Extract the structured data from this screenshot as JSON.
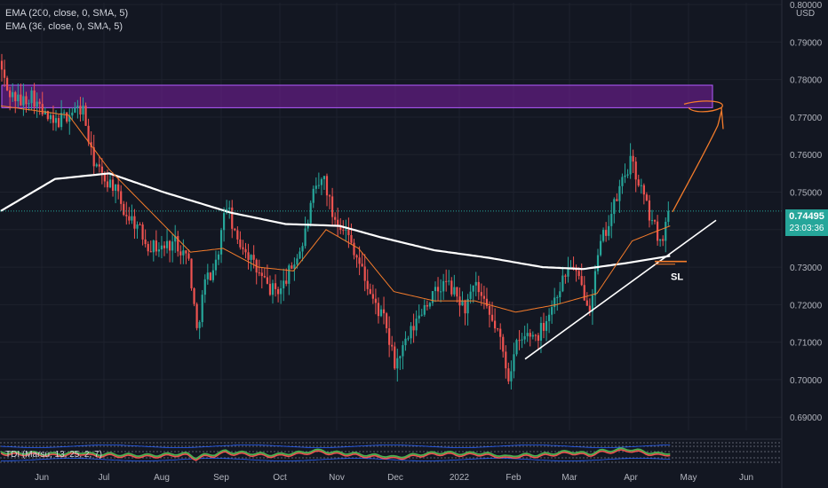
{
  "legend": {
    "ema200": "EMA (200, close, 0, SMA, 5)",
    "ema36": "EMA (36, close, 0, SMA, 5)"
  },
  "indicator": {
    "label": "TDI (Marsu, 13, 25, 2, 7)"
  },
  "price_axis": {
    "currency": "USD",
    "last_price": "0.74495",
    "countdown": "23:03:36"
  },
  "annotations": {
    "sl_label": "SL"
  },
  "colors": {
    "background": "#131722",
    "up": "#26a69a",
    "down": "#ef5350",
    "ema200": "#ffffff",
    "ema36": "#f57c2b",
    "zone_fill": "#7b1fa2",
    "zone_border": "#b35cff",
    "projection": "#f57c2b",
    "trendline": "#ffffff"
  },
  "chart_data": {
    "type": "candlestick",
    "title": "",
    "y_ticks": [
      "0.80000",
      "0.79000",
      "0.78000",
      "0.77000",
      "0.76000",
      "0.75000",
      "0.74000",
      "0.73000",
      "0.72000",
      "0.71000",
      "0.70000",
      "0.69000"
    ],
    "ylim": [
      0.6865,
      0.8005
    ],
    "x_ticks": [
      "Jun",
      "Jul",
      "Aug",
      "Sep",
      "Oct",
      "Nov",
      "Dec",
      "2022",
      "Feb",
      "Mar",
      "Apr",
      "May",
      "Jun"
    ],
    "last_price": 0.74495,
    "anchors": [
      [
        0,
        0.785
      ],
      [
        3,
        0.777
      ],
      [
        8,
        0.774
      ],
      [
        12,
        0.776
      ],
      [
        16,
        0.771
      ],
      [
        20,
        0.768
      ],
      [
        24,
        0.77
      ],
      [
        28,
        0.772
      ],
      [
        31,
        0.772
      ],
      [
        34,
        0.76
      ],
      [
        38,
        0.754
      ],
      [
        42,
        0.752
      ],
      [
        46,
        0.745
      ],
      [
        50,
        0.742
      ],
      [
        55,
        0.736
      ],
      [
        60,
        0.735
      ],
      [
        65,
        0.737
      ],
      [
        70,
        0.732
      ],
      [
        73,
        0.713
      ],
      [
        76,
        0.726
      ],
      [
        80,
        0.731
      ],
      [
        84,
        0.747
      ],
      [
        87,
        0.738
      ],
      [
        91,
        0.735
      ],
      [
        95,
        0.729
      ],
      [
        100,
        0.724
      ],
      [
        104,
        0.724
      ],
      [
        108,
        0.73
      ],
      [
        112,
        0.736
      ],
      [
        116,
        0.749
      ],
      [
        120,
        0.754
      ],
      [
        123,
        0.744
      ],
      [
        127,
        0.741
      ],
      [
        131,
        0.735
      ],
      [
        135,
        0.727
      ],
      [
        138,
        0.721
      ],
      [
        142,
        0.716
      ],
      [
        146,
        0.704
      ],
      [
        149,
        0.708
      ],
      [
        153,
        0.714
      ],
      [
        157,
        0.72
      ],
      [
        161,
        0.723
      ],
      [
        165,
        0.726
      ],
      [
        168,
        0.723
      ],
      [
        172,
        0.719
      ],
      [
        176,
        0.725
      ],
      [
        180,
        0.718
      ],
      [
        184,
        0.713
      ],
      [
        188,
        0.701
      ],
      [
        191,
        0.709
      ],
      [
        195,
        0.712
      ],
      [
        199,
        0.712
      ],
      [
        203,
        0.718
      ],
      [
        207,
        0.725
      ],
      [
        211,
        0.731
      ],
      [
        214,
        0.726
      ],
      [
        218,
        0.72
      ],
      [
        222,
        0.736
      ],
      [
        226,
        0.744
      ],
      [
        230,
        0.753
      ],
      [
        233,
        0.758
      ],
      [
        236,
        0.753
      ],
      [
        240,
        0.744
      ],
      [
        244,
        0.737
      ],
      [
        247,
        0.743
      ]
    ],
    "ema200_anchors": [
      [
        0,
        0.745
      ],
      [
        20,
        0.7535
      ],
      [
        40,
        0.755
      ],
      [
        60,
        0.75
      ],
      [
        85,
        0.7445
      ],
      [
        105,
        0.7415
      ],
      [
        125,
        0.741
      ],
      [
        140,
        0.738
      ],
      [
        160,
        0.7345
      ],
      [
        180,
        0.7325
      ],
      [
        200,
        0.73
      ],
      [
        215,
        0.7295
      ],
      [
        230,
        0.731
      ],
      [
        247,
        0.733
      ]
    ],
    "ema36_anchors": [
      [
        0,
        0.773
      ],
      [
        25,
        0.7705
      ],
      [
        40,
        0.756
      ],
      [
        55,
        0.745
      ],
      [
        70,
        0.734
      ],
      [
        82,
        0.735
      ],
      [
        95,
        0.73
      ],
      [
        108,
        0.729
      ],
      [
        120,
        0.74
      ],
      [
        132,
        0.735
      ],
      [
        145,
        0.7235
      ],
      [
        160,
        0.721
      ],
      [
        175,
        0.721
      ],
      [
        190,
        0.718
      ],
      [
        205,
        0.72
      ],
      [
        220,
        0.723
      ],
      [
        233,
        0.737
      ],
      [
        247,
        0.741
      ]
    ],
    "supply_zone": {
      "from": 0.7725,
      "to": 0.7785
    },
    "trendline": [
      [
        0.7055,
        "Feb"
      ],
      [
        0.7425,
        "May"
      ]
    ],
    "stop_loss": 0.7315,
    "projection_target": 0.7725
  }
}
